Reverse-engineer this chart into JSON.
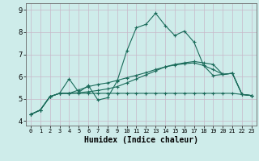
{
  "xlabel": "Humidex (Indice chaleur)",
  "background_color": "#ceecea",
  "grid_color": "#dde8e6",
  "line_color": "#1a6b5a",
  "ylim": [
    3.8,
    9.3
  ],
  "xlim": [
    -0.5,
    23.5
  ],
  "yticks": [
    4,
    5,
    6,
    7,
    8,
    9
  ],
  "xticks": [
    0,
    1,
    2,
    3,
    4,
    5,
    6,
    7,
    8,
    9,
    10,
    11,
    12,
    13,
    14,
    15,
    16,
    17,
    18,
    19,
    20,
    21,
    22,
    23
  ],
  "series": [
    [
      4.3,
      4.5,
      5.1,
      5.25,
      5.9,
      5.3,
      5.6,
      4.95,
      5.05,
      5.8,
      7.15,
      8.2,
      8.35,
      8.85,
      8.3,
      7.85,
      8.05,
      7.55,
      6.5,
      6.05,
      6.1,
      6.15,
      5.2,
      5.15
    ],
    [
      4.3,
      4.5,
      5.1,
      5.25,
      5.25,
      5.25,
      5.25,
      5.25,
      5.25,
      5.25,
      5.25,
      5.25,
      5.25,
      5.25,
      5.25,
      5.25,
      5.25,
      5.25,
      5.25,
      5.25,
      5.25,
      5.25,
      5.2,
      5.15
    ],
    [
      4.3,
      4.5,
      5.1,
      5.25,
      5.25,
      5.4,
      5.55,
      5.65,
      5.72,
      5.83,
      5.95,
      6.06,
      6.18,
      6.32,
      6.44,
      6.52,
      6.58,
      6.62,
      6.5,
      6.32,
      6.1,
      6.15,
      5.2,
      5.15
    ],
    [
      4.3,
      4.5,
      5.1,
      5.25,
      5.25,
      5.28,
      5.32,
      5.38,
      5.45,
      5.55,
      5.72,
      5.9,
      6.08,
      6.26,
      6.44,
      6.55,
      6.62,
      6.68,
      6.62,
      6.55,
      6.1,
      6.15,
      5.2,
      5.15
    ]
  ]
}
